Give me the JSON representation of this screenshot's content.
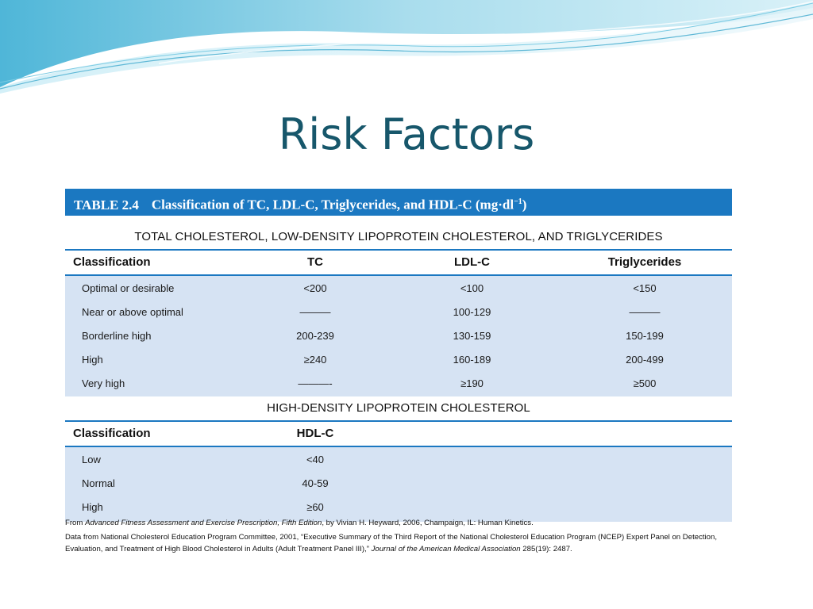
{
  "slide": {
    "title": "Risk Factors"
  },
  "table": {
    "caption_label": "TABLE 2.4",
    "caption_text": "Classification of TC, LDL-C, Triglycerides, and HDL-C (mg·dl",
    "caption_sup": "−1",
    "caption_end": ")",
    "section1": {
      "heading": "TOTAL CHOLESTEROL, LOW-DENSITY LIPOPROTEIN CHOLESTEROL, AND TRIGLYCERIDES",
      "columns": [
        "Classification",
        "TC",
        "LDL-C",
        "Triglycerides"
      ],
      "rows": [
        [
          "Optimal or desirable",
          "<200",
          "<100",
          "<150"
        ],
        [
          "Near or above optimal",
          "———",
          "100-129",
          "———"
        ],
        [
          "Borderline high",
          "200-239",
          "130-159",
          "150-199"
        ],
        [
          "High",
          "≥240",
          "160-189",
          "200-499"
        ],
        [
          "Very high",
          "———-",
          "≥190",
          "≥500"
        ]
      ]
    },
    "section2": {
      "heading": "HIGH-DENSITY LIPOPROTEIN CHOLESTEROL",
      "columns": [
        "Classification",
        "HDL-C"
      ],
      "rows": [
        [
          "Low",
          "<40"
        ],
        [
          "Normal",
          "40-59"
        ],
        [
          "High",
          "≥60"
        ]
      ]
    }
  },
  "footnotes": {
    "line1_a": "From ",
    "line1_italic": "Advanced Fitness Assessment and Exercise Prescription, Fifth Edition",
    "line1_b": ", by Vivian H. Heyward, 2006, Champaign, IL: Human Kinetics.",
    "line2_a": "Data from National Cholesterol Education Program Committee, 2001, “Executive Summary of the Third Report of the National Cholesterol Education Program (NCEP) Expert Panel on Detection, Evaluation, and Treatment of High Blood Cholesterol in Adults (Adult Treatment Panel III),” ",
    "line2_italic": "Journal of the American Medical Association",
    "line2_b": " 285(19): 2487."
  }
}
